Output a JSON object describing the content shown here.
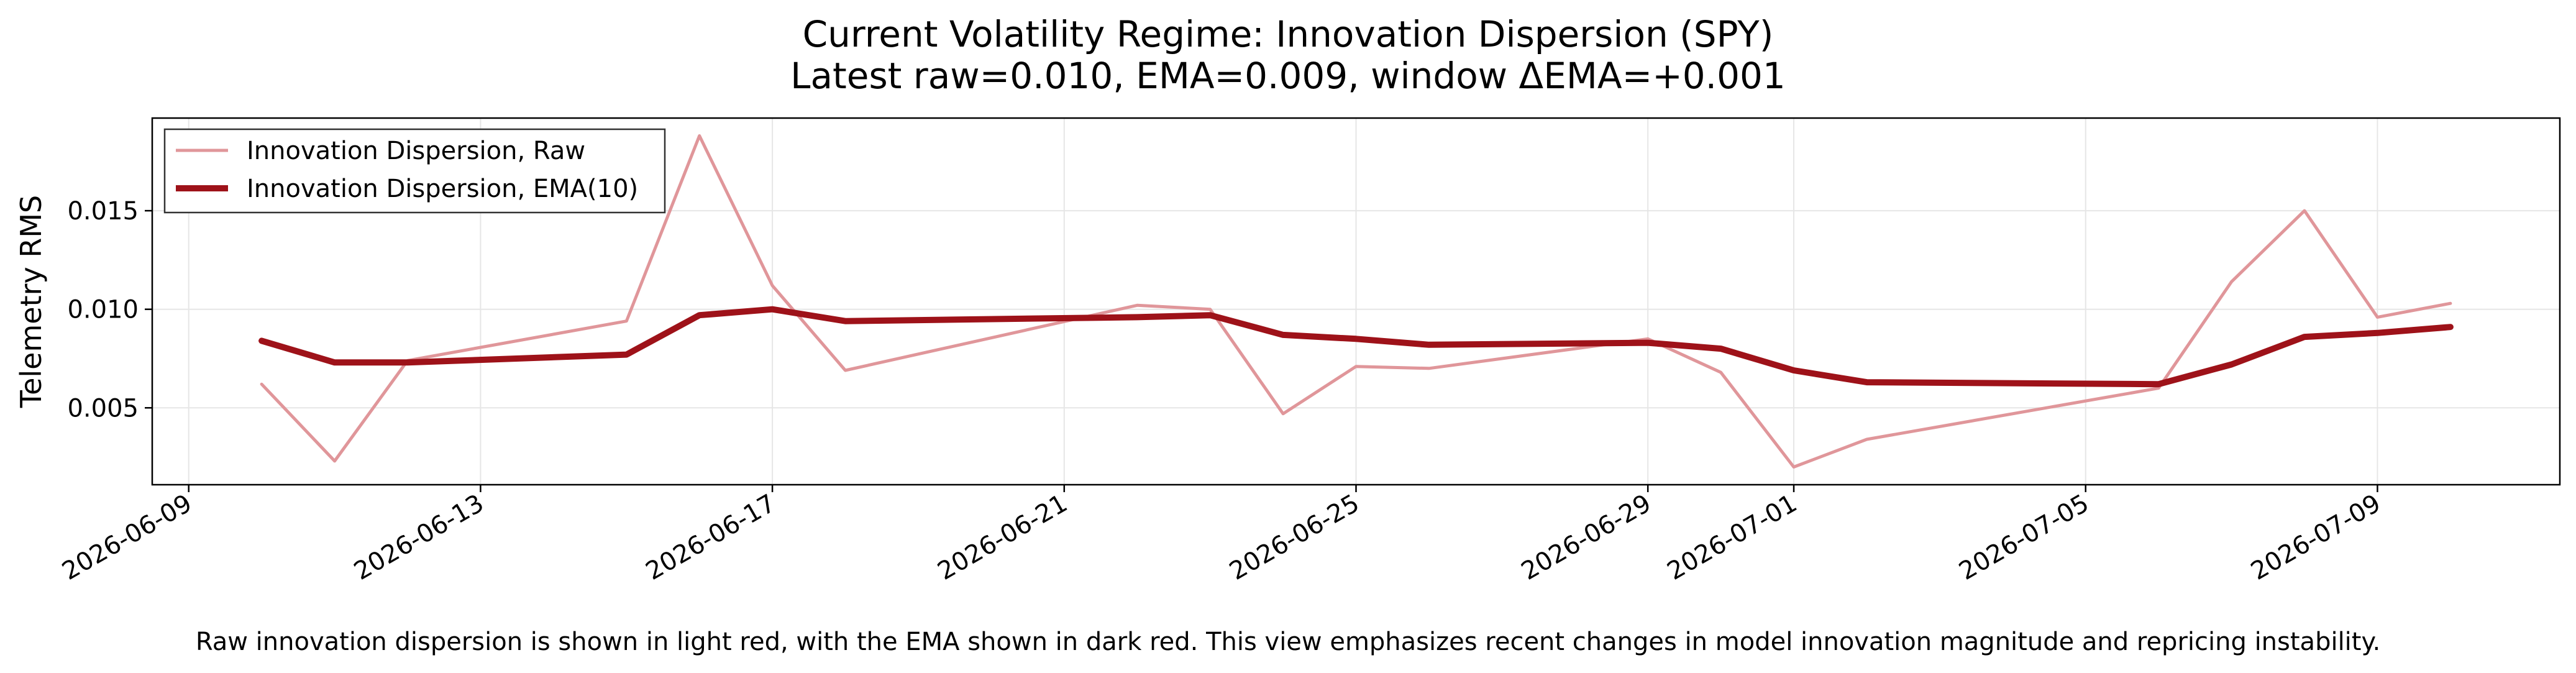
{
  "chart_data": {
    "type": "line",
    "title": "Current Volatility Regime: Innovation Dispersion (SPY)",
    "subtitle": "Latest raw=0.010, EMA=0.009, window ΔEMA=+0.001",
    "xlabel": "",
    "ylabel": "Telemetry RMS",
    "caption": "Raw innovation dispersion is shown in light red, with the EMA shown in dark red. This view emphasizes recent changes in model innovation magnitude and repricing instability.",
    "xlim": [
      "2026-06-08T12:00",
      "2026-07-11T12:00"
    ],
    "ylim": [
      0.0011,
      0.0197
    ],
    "x_ticks": [
      "2026-06-09",
      "2026-06-13",
      "2026-06-17",
      "2026-06-21",
      "2026-06-25",
      "2026-06-29",
      "2026-07-01",
      "2026-07-05",
      "2026-07-09"
    ],
    "y_ticks": [
      0.005,
      0.01,
      0.015
    ],
    "y_tick_labels": [
      "0.005",
      "0.010",
      "0.015"
    ],
    "grid": true,
    "legend_position": "top-left",
    "colors": {
      "raw": "#e0969a",
      "ema": "#9e1219"
    },
    "x": [
      "2026-06-10",
      "2026-06-11",
      "2026-06-12",
      "2026-06-15",
      "2026-06-16",
      "2026-06-17",
      "2026-06-18",
      "2026-06-22",
      "2026-06-23",
      "2026-06-24",
      "2026-06-25",
      "2026-06-26",
      "2026-06-29",
      "2026-06-30",
      "2026-07-01",
      "2026-07-02",
      "2026-07-06",
      "2026-07-07",
      "2026-07-08",
      "2026-07-09",
      "2026-07-10"
    ],
    "series": [
      {
        "name": "Innovation Dispersion, Raw",
        "values": [
          0.0062,
          0.0023,
          0.0074,
          0.0094,
          0.0188,
          0.0112,
          0.0069,
          0.0102,
          0.01,
          0.0047,
          0.0071,
          0.007,
          0.0085,
          0.0068,
          0.002,
          0.0034,
          0.006,
          0.0114,
          0.015,
          0.0096,
          0.0103
        ]
      },
      {
        "name": "Innovation Dispersion, EMA(10)",
        "values": [
          0.0084,
          0.0073,
          0.0073,
          0.0077,
          0.0097,
          0.01,
          0.0094,
          0.0096,
          0.0097,
          0.0087,
          0.0085,
          0.0082,
          0.0083,
          0.008,
          0.0069,
          0.0063,
          0.0062,
          0.0072,
          0.0086,
          0.0088,
          0.0091
        ]
      }
    ]
  }
}
